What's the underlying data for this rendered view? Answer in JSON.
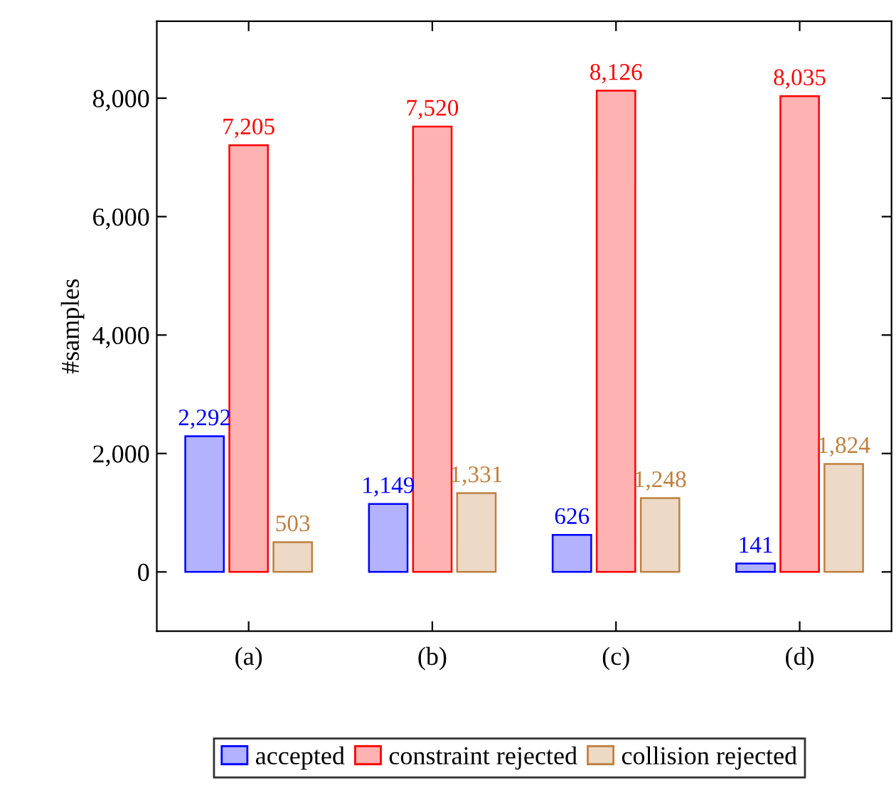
{
  "chart_data": {
    "type": "bar",
    "ylabel": "#samples",
    "categories": [
      "(a)",
      "(b)",
      "(c)",
      "(d)"
    ],
    "series": [
      {
        "name": "accepted",
        "color": "#0000ff",
        "values": [
          2292,
          1149,
          626,
          141
        ],
        "value_labels": [
          "2,292",
          "1,149",
          "626",
          "141"
        ]
      },
      {
        "name": "constraint rejected",
        "color": "#ff0000",
        "values": [
          7205,
          7520,
          8126,
          8035
        ],
        "value_labels": [
          "7,205",
          "7,520",
          "8,126",
          "8,035"
        ]
      },
      {
        "name": "collision rejected",
        "color": "#bf8040",
        "values": [
          503,
          1331,
          1248,
          1824
        ],
        "value_labels": [
          "503",
          "1,331",
          "1,248",
          "1,824"
        ]
      }
    ],
    "ylim": [
      -1000,
      9300
    ],
    "yticks": [
      {
        "value": 0,
        "label": "0"
      },
      {
        "value": 2000,
        "label": "2,000"
      },
      {
        "value": 4000,
        "label": "4,000"
      },
      {
        "value": 6000,
        "label": "6,000"
      },
      {
        "value": 8000,
        "label": "8,000"
      }
    ],
    "grid": false,
    "legend": "bottom"
  }
}
